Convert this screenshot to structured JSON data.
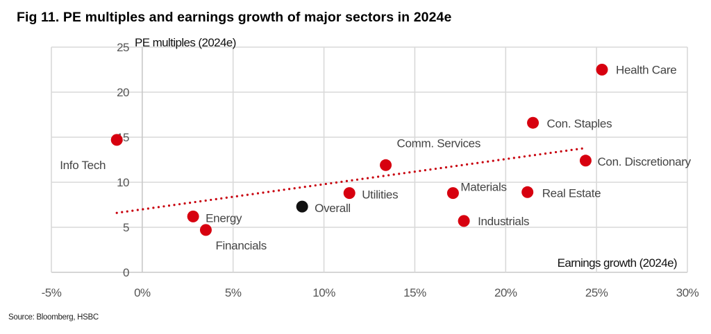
{
  "title": "Fig 11. PE multiples and earnings growth of major sectors in 2024e",
  "source": "Source: Bloomberg, HSBC",
  "chart_data": {
    "type": "scatter",
    "title": "Fig 11. PE multiples and earnings growth of major sectors in 2024e",
    "xlabel": "Earnings growth (2024e)",
    "ylabel": "PE multiples (2024e)",
    "xlim": [
      -5,
      30
    ],
    "ylim": [
      0,
      25
    ],
    "x_ticks": [
      -5,
      0,
      5,
      10,
      15,
      20,
      25,
      30
    ],
    "x_tick_labels": [
      "-5%",
      "0%",
      "5%",
      "10%",
      "15%",
      "20%",
      "25%",
      "30%"
    ],
    "y_ticks": [
      0,
      5,
      10,
      15,
      20,
      25
    ],
    "y_tick_labels": [
      "0",
      "5",
      "10",
      "15",
      "20",
      "25"
    ],
    "grid": true,
    "colors": {
      "sector": "#d7000f",
      "overall": "#111111",
      "trendline": "#c8000d",
      "grid": "#d9d9d9"
    },
    "points": [
      {
        "name": "Info Tech",
        "x": -1.4,
        "y": 14.7,
        "kind": "sector"
      },
      {
        "name": "Energy",
        "x": 2.8,
        "y": 6.2,
        "kind": "sector"
      },
      {
        "name": "Financials",
        "x": 3.5,
        "y": 4.7,
        "kind": "sector"
      },
      {
        "name": "Overall",
        "x": 8.8,
        "y": 7.3,
        "kind": "overall"
      },
      {
        "name": "Utilities",
        "x": 11.4,
        "y": 8.8,
        "kind": "sector"
      },
      {
        "name": "Comm. Services",
        "x": 13.4,
        "y": 11.9,
        "kind": "sector"
      },
      {
        "name": "Materials",
        "x": 17.1,
        "y": 8.8,
        "kind": "sector"
      },
      {
        "name": "Industrials",
        "x": 17.7,
        "y": 5.7,
        "kind": "sector"
      },
      {
        "name": "Real Estate",
        "x": 21.2,
        "y": 8.9,
        "kind": "sector"
      },
      {
        "name": "Con. Staples",
        "x": 21.5,
        "y": 16.6,
        "kind": "sector"
      },
      {
        "name": "Con. Discretionary",
        "x": 24.4,
        "y": 12.4,
        "kind": "sector"
      },
      {
        "name": "Health Care",
        "x": 25.3,
        "y": 22.5,
        "kind": "sector"
      }
    ],
    "trendline": {
      "type": "linear",
      "style": "dotted",
      "from": {
        "x": -1.4,
        "y": 6.6
      },
      "to": {
        "x": 24.4,
        "y": 13.8
      }
    }
  }
}
